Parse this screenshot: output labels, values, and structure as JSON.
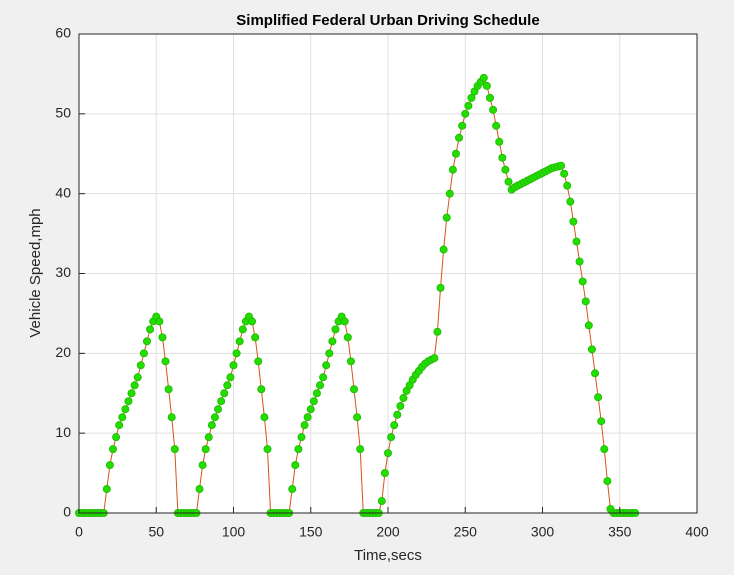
{
  "chart_data": {
    "type": "line",
    "title": "Simplified Federal Urban Driving Schedule",
    "xlabel": "Time,secs",
    "ylabel": "Vehicle Speed,mph",
    "x": [
      0,
      2,
      4,
      6,
      8,
      10,
      12,
      14,
      16,
      18,
      20,
      22,
      24,
      26,
      28,
      30,
      32,
      34,
      36,
      38,
      40,
      42,
      44,
      46,
      48,
      50,
      52,
      54,
      56,
      58,
      60,
      62,
      64,
      66,
      68,
      70,
      72,
      74,
      76,
      78,
      80,
      82,
      84,
      86,
      88,
      90,
      92,
      94,
      96,
      98,
      100,
      102,
      104,
      106,
      108,
      110,
      112,
      114,
      116,
      118,
      120,
      122,
      124,
      126,
      128,
      130,
      132,
      134,
      136,
      138,
      140,
      142,
      144,
      146,
      148,
      150,
      152,
      154,
      156,
      158,
      160,
      162,
      164,
      166,
      168,
      170,
      172,
      174,
      176,
      178,
      180,
      182,
      184,
      186,
      188,
      190,
      192,
      194,
      196,
      198,
      200,
      202,
      204,
      206,
      208,
      210,
      212,
      214,
      216,
      218,
      220,
      222,
      224,
      226,
      228,
      230,
      232,
      234,
      236,
      238,
      240,
      242,
      244,
      246,
      248,
      250,
      252,
      254,
      256,
      258,
      260,
      262,
      264,
      266,
      268,
      270,
      272,
      274,
      276,
      278,
      280,
      282,
      284,
      286,
      288,
      290,
      292,
      294,
      296,
      298,
      300,
      302,
      304,
      306,
      308,
      310,
      312,
      314,
      316,
      318,
      320,
      322,
      324,
      326,
      328,
      330,
      332,
      334,
      336,
      338,
      340,
      342,
      344,
      346,
      348,
      350,
      352,
      354,
      356,
      358,
      360
    ],
    "values": [
      0,
      0,
      0,
      0,
      0,
      0,
      0,
      0,
      0,
      3,
      6,
      8,
      9.5,
      11,
      12,
      13,
      14,
      15,
      16,
      17,
      18.5,
      20,
      21.5,
      23,
      24,
      24.6,
      24,
      22,
      19,
      15.5,
      12,
      8,
      0,
      0,
      0,
      0,
      0,
      0,
      0,
      3,
      6,
      8,
      9.5,
      11,
      12,
      13,
      14,
      15,
      16,
      17,
      18.5,
      20,
      21.5,
      23,
      24,
      24.6,
      24,
      22,
      19,
      15.5,
      12,
      8,
      0,
      0,
      0,
      0,
      0,
      0,
      0,
      3,
      6,
      8,
      9.5,
      11,
      12,
      13,
      14,
      15,
      16,
      17,
      18.5,
      20,
      21.5,
      23,
      24,
      24.6,
      24,
      22,
      19,
      15.5,
      12,
      8,
      0,
      0,
      0,
      0,
      0,
      0,
      1.5,
      5,
      7.5,
      9.5,
      11,
      12.3,
      13.4,
      14.4,
      15.3,
      16,
      16.7,
      17.3,
      17.8,
      18.3,
      18.7,
      19,
      19.2,
      19.4,
      22.7,
      28.2,
      33,
      37,
      40,
      43,
      45,
      47,
      48.5,
      50,
      51,
      52,
      52.8,
      53.5,
      54,
      54.5,
      53.5,
      52,
      50.5,
      48.5,
      46.5,
      44.5,
      43,
      41.5,
      40.5,
      40.8,
      41,
      41.2,
      41.4,
      41.6,
      41.8,
      42,
      42.2,
      42.4,
      42.6,
      42.8,
      43,
      43.2,
      43.3,
      43.4,
      43.5,
      42.5,
      41,
      39,
      36.5,
      34,
      31.5,
      29,
      26.5,
      23.5,
      20.5,
      17.5,
      14.5,
      11.5,
      8,
      4,
      0.5,
      0,
      0,
      0,
      0,
      0,
      0,
      0,
      0
    ],
    "line_color": "#d95319",
    "marker_color": "#22dd00",
    "marker_edge": "#1fb800",
    "xlim": [
      0,
      400
    ],
    "xticks": [
      0,
      50,
      100,
      150,
      200,
      250,
      300,
      350,
      400
    ],
    "ylim": [
      0,
      60
    ],
    "yticks": [
      0,
      10,
      20,
      30,
      40,
      50,
      60
    ],
    "grid": true
  }
}
